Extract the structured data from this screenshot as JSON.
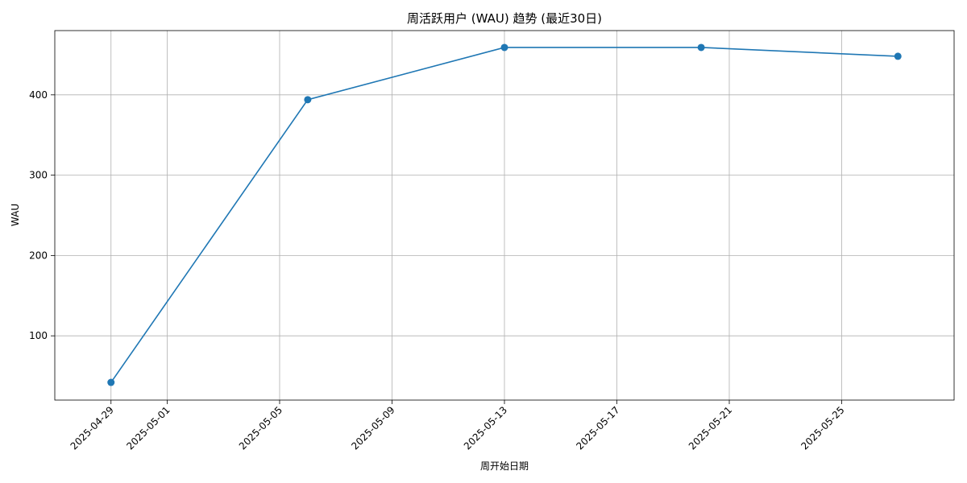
{
  "chart_data": {
    "type": "line",
    "title": "周活跃用户 (WAU) 趋势 (最近30日)",
    "xlabel": "周开始日期",
    "ylabel": "WAU",
    "x_type": "date",
    "xlim": [
      "2025-04-27",
      "2025-05-29"
    ],
    "ylim": [
      20,
      480
    ],
    "x_ticks": [
      "2025-04-29",
      "2025-05-01",
      "2025-05-05",
      "2025-05-09",
      "2025-05-13",
      "2025-05-17",
      "2025-05-21",
      "2025-05-25"
    ],
    "y_ticks": [
      100,
      200,
      300,
      400
    ],
    "grid": true,
    "legend": null,
    "line_color": "#1f77b4",
    "marker": "circle",
    "series": [
      {
        "x": [
          "2025-04-29",
          "2025-05-06",
          "2025-05-13",
          "2025-05-20",
          "2025-05-27"
        ],
        "values": [
          42,
          394,
          459,
          459,
          448
        ]
      }
    ]
  }
}
